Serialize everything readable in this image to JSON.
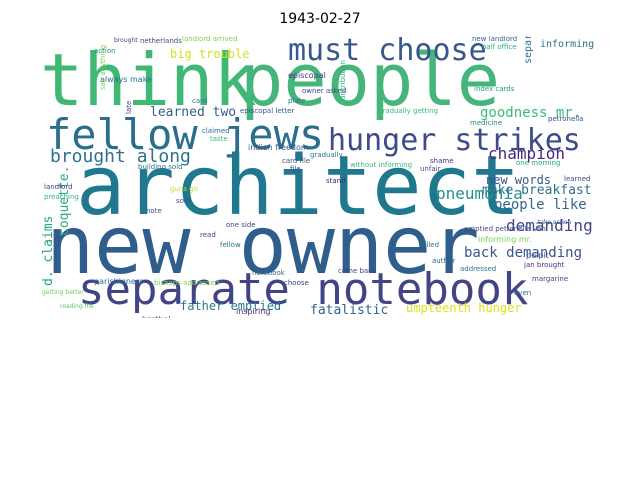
{
  "title": "1943-02-27",
  "words": [
    {
      "text": "think",
      "color": "#3fb873",
      "big": 1
    },
    {
      "text": "people",
      "color": "#46b57a",
      "big": 1
    },
    {
      "text": "architect",
      "color": "#1f788e",
      "big": 1
    },
    {
      "text": "new owner",
      "color": "#2f5d8c",
      "big": 1
    },
    {
      "text": "separate notebook",
      "color": "#414487",
      "big": 1
    },
    {
      "text": "fellow jews",
      "color": "#2a6e8e",
      "big": 1
    },
    {
      "text": "must choose",
      "color": "#36588c",
      "big": 1
    },
    {
      "text": "hunger strikes",
      "color": "#3e4a89",
      "big": 1
    },
    {
      "text": "brought along",
      "color": "#2d718e",
      "big": 1
    },
    {
      "text": "pneumonia",
      "color": "#21928c",
      "big": 1
    },
    {
      "text": "champion",
      "color": "#482878",
      "big": 1
    },
    {
      "text": "goodness mr.",
      "color": "#3bbb75",
      "big": 1
    },
    {
      "text": "learned two",
      "color": "#355f8d",
      "big": 1
    },
    {
      "text": "make breakfast",
      "color": "#2c728e",
      "big": 1
    },
    {
      "text": "people like",
      "color": "#31678e",
      "big": 1
    },
    {
      "text": "new words",
      "color": "#3b528b",
      "big": 1
    },
    {
      "text": "demanding",
      "color": "#404688",
      "big": 1
    },
    {
      "text": "back demanding",
      "color": "#39568c",
      "big": 1
    },
    {
      "text": "d. claims",
      "color": "#21a685",
      "big": 1
    },
    {
      "text": "coquette.",
      "color": "#27ad81",
      "big": 1
    },
    {
      "text": "father emptied",
      "color": "#2a788e",
      "big": 1
    },
    {
      "text": "fatalistic",
      "color": "#34618d",
      "big": 1
    },
    {
      "text": "umpteenth hunger",
      "color": "#dde318",
      "big": 1
    },
    {
      "text": "big trouble",
      "color": "#d0e11c",
      "big": 1
    },
    {
      "text": "informing",
      "color": "#2e6f8e",
      "big": 1
    },
    {
      "text": "separate",
      "color": "#2d708e",
      "big": 1
    },
    {
      "text": "episcopal",
      "color": "#453581",
      "big": 0
    },
    {
      "text": "always make",
      "color": "#2e6e8e",
      "big": 0
    },
    {
      "text": "action",
      "color": "#20928c",
      "big": 0
    },
    {
      "text": "index cards",
      "color": "#1fa088",
      "big": 0
    },
    {
      "text": "medicine",
      "color": "#228b8d",
      "big": 0
    },
    {
      "text": "petronella",
      "color": "#3d4d8a",
      "big": 0
    },
    {
      "text": "indian freedom",
      "color": "#365c8d",
      "big": 0
    },
    {
      "text": "gradually",
      "color": "#2a768e",
      "big": 0
    },
    {
      "text": "building sold",
      "color": "#2b748e",
      "big": 0
    },
    {
      "text": "preaching",
      "color": "#37b878",
      "big": 0
    },
    {
      "text": "landlord",
      "color": "#443a83",
      "big": 0
    },
    {
      "text": "one side",
      "color": "#3f4889",
      "big": 0
    },
    {
      "text": "notebook",
      "color": "#2f6c8e",
      "big": 0
    },
    {
      "text": "parishioners",
      "color": "#2c718e",
      "big": 0
    },
    {
      "text": "bishops addressed",
      "color": "#7ad151",
      "big": 0
    },
    {
      "text": "brothel",
      "color": "#3e4989",
      "big": 0
    },
    {
      "text": "inspiring",
      "color": "#472d7b",
      "big": 0
    },
    {
      "text": "choose",
      "color": "#424086",
      "big": 0
    },
    {
      "text": "come back",
      "color": "#3f4788",
      "big": 0
    },
    {
      "text": "author",
      "color": "#38598c",
      "big": 0
    },
    {
      "text": "addressed",
      "color": "#2b758e",
      "big": 0
    },
    {
      "text": "filled",
      "color": "#2c728e",
      "big": 0
    },
    {
      "text": "pulpit",
      "color": "#3b528b",
      "big": 0
    },
    {
      "text": "jan brought",
      "color": "#46307e",
      "big": 0
    },
    {
      "text": "margarine",
      "color": "#3f4788",
      "big": 0
    },
    {
      "text": "reading file",
      "color": "#5cc863",
      "big": 0
    },
    {
      "text": "emptied petronella van",
      "color": "#3e4c8a",
      "big": 0
    },
    {
      "text": "informing mr.",
      "color": "#75d054",
      "big": 0
    },
    {
      "text": "take action",
      "color": "#3c508b",
      "big": 0
    },
    {
      "text": "gradually getting",
      "color": "#3cbc74",
      "big": 0
    },
    {
      "text": "new landlord",
      "color": "#33638d",
      "big": 0
    },
    {
      "text": "half office",
      "color": "#29af7f",
      "big": 0
    },
    {
      "text": "landlord arrived",
      "color": "#7ad151",
      "big": 0
    },
    {
      "text": "netherlands",
      "color": "#3e4a89",
      "big": 0
    },
    {
      "text": "brought",
      "color": "#433e85",
      "big": 0
    },
    {
      "text": "plate",
      "color": "#2d708e",
      "big": 0
    },
    {
      "text": "owner asked",
      "color": "#414487",
      "big": 0
    },
    {
      "text": "episcopal letter",
      "color": "#38588c",
      "big": 0
    },
    {
      "text": "claimed",
      "color": "#306a8e",
      "big": 0
    },
    {
      "text": "taste",
      "color": "#37b878",
      "big": 0
    },
    {
      "text": "card",
      "color": "#2f6b8e",
      "big": 0
    },
    {
      "text": "late",
      "color": "#424186",
      "big": 0
    },
    {
      "text": "file",
      "color": "#3d4e8a",
      "big": 0
    },
    {
      "text": "card file",
      "color": "#3a548c",
      "big": 0
    },
    {
      "text": "stand",
      "color": "#482475",
      "big": 0
    },
    {
      "text": "without informing",
      "color": "#3dbc74",
      "big": 0
    },
    {
      "text": "distribution",
      "color": "#29af7f",
      "big": 0
    },
    {
      "text": "shame",
      "color": "#46337f",
      "big": 0
    },
    {
      "text": "unfair",
      "color": "#3e4989",
      "big": 0
    },
    {
      "text": "one morning",
      "color": "#21a685",
      "big": 0
    },
    {
      "text": "sold",
      "color": "#3f4889",
      "big": 0
    },
    {
      "text": "note",
      "color": "#3e4a89",
      "big": 0
    },
    {
      "text": "guns go",
      "color": "#c2df23",
      "big": 0
    },
    {
      "text": "read",
      "color": "#3f4788",
      "big": 0
    },
    {
      "text": "fellow",
      "color": "#2d708e",
      "big": 0
    },
    {
      "text": "learned",
      "color": "#3e4a89",
      "big": 0
    },
    {
      "text": "getting better",
      "color": "#6ccd5a",
      "big": 0
    },
    {
      "text": "even",
      "color": "#2a788e",
      "big": 0
    },
    {
      "text": "say anything",
      "color": "#7ad151",
      "big": 0
    }
  ]
}
